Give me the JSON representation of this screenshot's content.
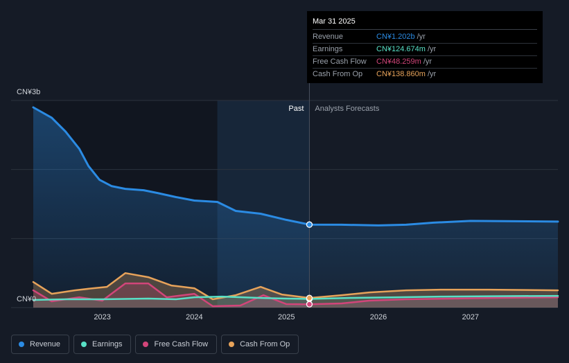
{
  "chart_data": {
    "type": "area",
    "title": "",
    "y_axis_labels": [
      "CN¥3b",
      "CN¥0"
    ],
    "ylim": [
      0,
      3.0
    ],
    "xlim": [
      2022.25,
      2027.95
    ],
    "x_ticks": [
      2023,
      2024,
      2025,
      2026,
      2027
    ],
    "x_tick_labels": [
      "2023",
      "2024",
      "2025",
      "2026",
      "2027"
    ],
    "past_label": "Past",
    "forecast_label": "Analysts Forecasts",
    "divider_x": 2025.25,
    "shade_start_x": 2024.25,
    "series": [
      {
        "name": "Revenue",
        "color": "#2b8be3",
        "points": [
          [
            2022.25,
            2.9
          ],
          [
            2022.45,
            2.75
          ],
          [
            2022.6,
            2.55
          ],
          [
            2022.75,
            2.3
          ],
          [
            2022.85,
            2.05
          ],
          [
            2022.97,
            1.85
          ],
          [
            2023.1,
            1.76
          ],
          [
            2023.25,
            1.72
          ],
          [
            2023.45,
            1.7
          ],
          [
            2023.6,
            1.66
          ],
          [
            2023.8,
            1.6
          ],
          [
            2024.0,
            1.55
          ],
          [
            2024.25,
            1.53
          ],
          [
            2024.45,
            1.4
          ],
          [
            2024.72,
            1.36
          ],
          [
            2025.0,
            1.27
          ],
          [
            2025.25,
            1.202
          ],
          [
            2025.6,
            1.2
          ],
          [
            2026.0,
            1.19
          ],
          [
            2026.3,
            1.2
          ],
          [
            2026.6,
            1.23
          ],
          [
            2027.0,
            1.255
          ],
          [
            2027.5,
            1.25
          ],
          [
            2027.95,
            1.245
          ]
        ]
      },
      {
        "name": "Earnings",
        "color": "#58e0c6",
        "points": [
          [
            2022.25,
            0.11
          ],
          [
            2022.6,
            0.12
          ],
          [
            2023.0,
            0.12
          ],
          [
            2023.5,
            0.13
          ],
          [
            2023.8,
            0.12
          ],
          [
            2024.0,
            0.15
          ],
          [
            2024.3,
            0.16
          ],
          [
            2024.7,
            0.14
          ],
          [
            2025.0,
            0.13
          ],
          [
            2025.25,
            0.125
          ],
          [
            2025.7,
            0.14
          ],
          [
            2026.2,
            0.15
          ],
          [
            2026.7,
            0.16
          ],
          [
            2027.2,
            0.165
          ],
          [
            2027.95,
            0.17
          ]
        ]
      },
      {
        "name": "Free Cash Flow",
        "color": "#d2457a",
        "points": [
          [
            2022.25,
            0.25
          ],
          [
            2022.45,
            0.09
          ],
          [
            2022.75,
            0.15
          ],
          [
            2023.0,
            0.1
          ],
          [
            2023.25,
            0.35
          ],
          [
            2023.5,
            0.35
          ],
          [
            2023.7,
            0.15
          ],
          [
            2024.0,
            0.2
          ],
          [
            2024.2,
            0.02
          ],
          [
            2024.5,
            0.03
          ],
          [
            2024.75,
            0.18
          ],
          [
            2025.0,
            0.05
          ],
          [
            2025.25,
            0.048
          ],
          [
            2025.6,
            0.06
          ],
          [
            2025.9,
            0.1
          ],
          [
            2026.3,
            0.12
          ],
          [
            2026.8,
            0.13
          ],
          [
            2027.3,
            0.14
          ],
          [
            2027.95,
            0.15
          ]
        ]
      },
      {
        "name": "Cash From Op",
        "color": "#e7a35a",
        "points": [
          [
            2022.25,
            0.37
          ],
          [
            2022.45,
            0.2
          ],
          [
            2022.7,
            0.25
          ],
          [
            2022.9,
            0.28
          ],
          [
            2023.05,
            0.3
          ],
          [
            2023.25,
            0.5
          ],
          [
            2023.5,
            0.44
          ],
          [
            2023.75,
            0.32
          ],
          [
            2024.0,
            0.28
          ],
          [
            2024.2,
            0.12
          ],
          [
            2024.45,
            0.18
          ],
          [
            2024.72,
            0.3
          ],
          [
            2024.95,
            0.19
          ],
          [
            2025.25,
            0.139
          ],
          [
            2025.6,
            0.18
          ],
          [
            2025.9,
            0.22
          ],
          [
            2026.3,
            0.25
          ],
          [
            2026.7,
            0.26
          ],
          [
            2027.2,
            0.26
          ],
          [
            2027.95,
            0.25
          ]
        ]
      }
    ]
  },
  "tooltip": {
    "date": "Mar 31 2025",
    "rows": [
      {
        "label": "Revenue",
        "value": "CN¥1.202b",
        "unit": "/yr",
        "color": "#2b8be3"
      },
      {
        "label": "Earnings",
        "value": "CN¥124.674m",
        "unit": "/yr",
        "color": "#58e0c6"
      },
      {
        "label": "Free Cash Flow",
        "value": "CN¥48.259m",
        "unit": "/yr",
        "color": "#d2457a"
      },
      {
        "label": "Cash From Op",
        "value": "CN¥138.860m",
        "unit": "/yr",
        "color": "#e7a35a"
      }
    ]
  },
  "legend": [
    {
      "label": "Revenue",
      "color": "#2b8be3"
    },
    {
      "label": "Earnings",
      "color": "#58e0c6"
    },
    {
      "label": "Free Cash Flow",
      "color": "#d2457a"
    },
    {
      "label": "Cash From Op",
      "color": "#e7a35a"
    }
  ]
}
